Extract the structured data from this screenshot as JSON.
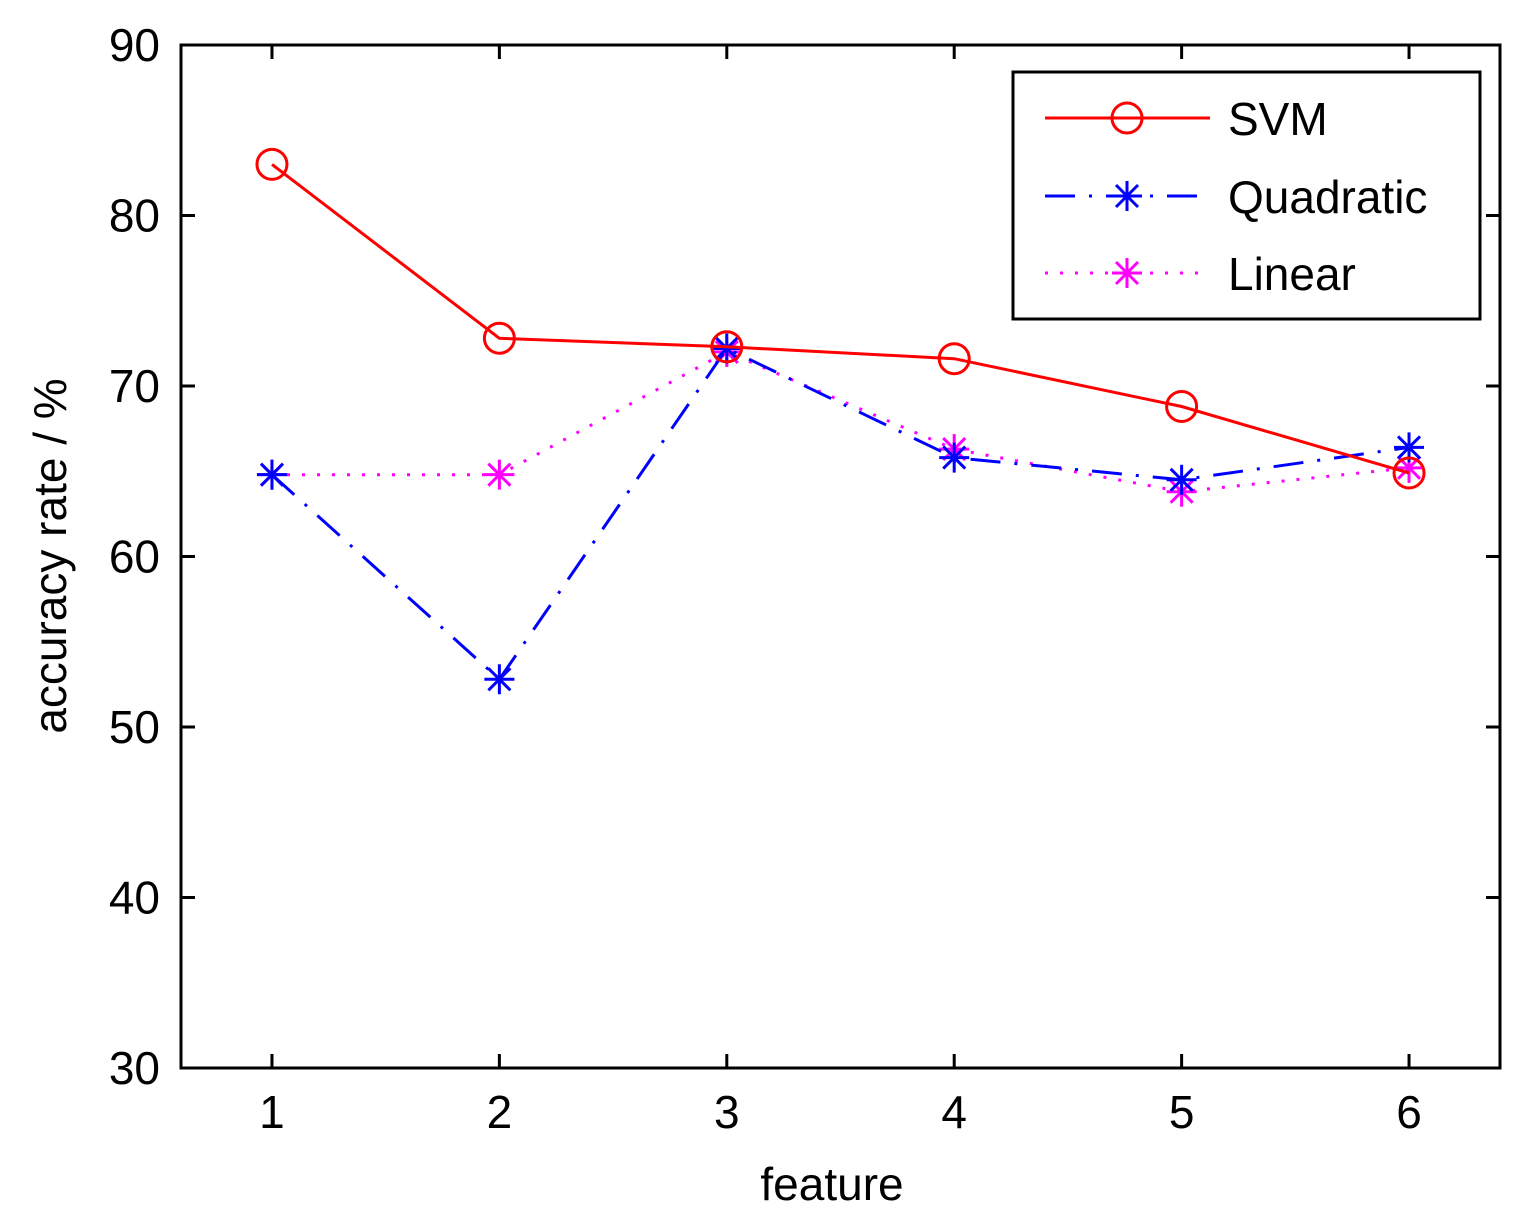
{
  "chart_data": {
    "type": "line",
    "title": "",
    "xlabel": "feature",
    "ylabel": "accuracy rate / %",
    "x": [
      1,
      2,
      3,
      4,
      5,
      6
    ],
    "xlim": [
      0.6,
      6.4
    ],
    "ylim": [
      30,
      90
    ],
    "xticks": [
      "1",
      "2",
      "3",
      "4",
      "5",
      "6"
    ],
    "yticks": [
      "30",
      "40",
      "50",
      "60",
      "70",
      "80",
      "90"
    ],
    "grid": false,
    "legend_position": "top-right",
    "series": [
      {
        "name": "SVM",
        "values": [
          83.0,
          72.8,
          72.3,
          71.6,
          68.8,
          64.9
        ],
        "color": "#ff0000",
        "line_style": "solid",
        "marker": "circle"
      },
      {
        "name": "Quadratic",
        "values": [
          64.8,
          52.8,
          72.2,
          65.8,
          64.5,
          66.4
        ],
        "color": "#0000ff",
        "line_style": "dashdot",
        "marker": "asterisk"
      },
      {
        "name": "Linear",
        "values": [
          64.8,
          64.8,
          72.0,
          66.3,
          63.8,
          65.2
        ],
        "color": "#ff00ff",
        "line_style": "dotted",
        "marker": "asterisk"
      }
    ]
  }
}
